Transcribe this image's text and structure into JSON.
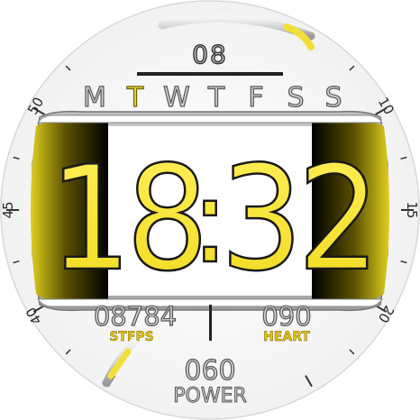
{
  "watch": {
    "date": "08",
    "weekdays": [
      "M",
      "T",
      "W",
      "T",
      "F",
      "S",
      "S"
    ],
    "active_weekday_index": 1,
    "time": {
      "hours": "18",
      "colon": ":",
      "minutes": "32"
    },
    "steps": {
      "value": "08784",
      "label": "STEPS"
    },
    "heart": {
      "value": "090",
      "label": "HEART"
    },
    "power": {
      "value": "060",
      "label": "POWER"
    },
    "bezel_numbers": [
      "10",
      "15",
      "20",
      "40",
      "45",
      "50"
    ],
    "top_arc_progress": 0.35,
    "bottom_gauge_progress": 0.6,
    "colors": {
      "accent": "#f2e03a",
      "accent_dark": "#c9b900",
      "label_yellow": "#e8c400",
      "text_silver": "#d0d0d0",
      "text_outline": "#555555",
      "tick": "#333333"
    }
  }
}
